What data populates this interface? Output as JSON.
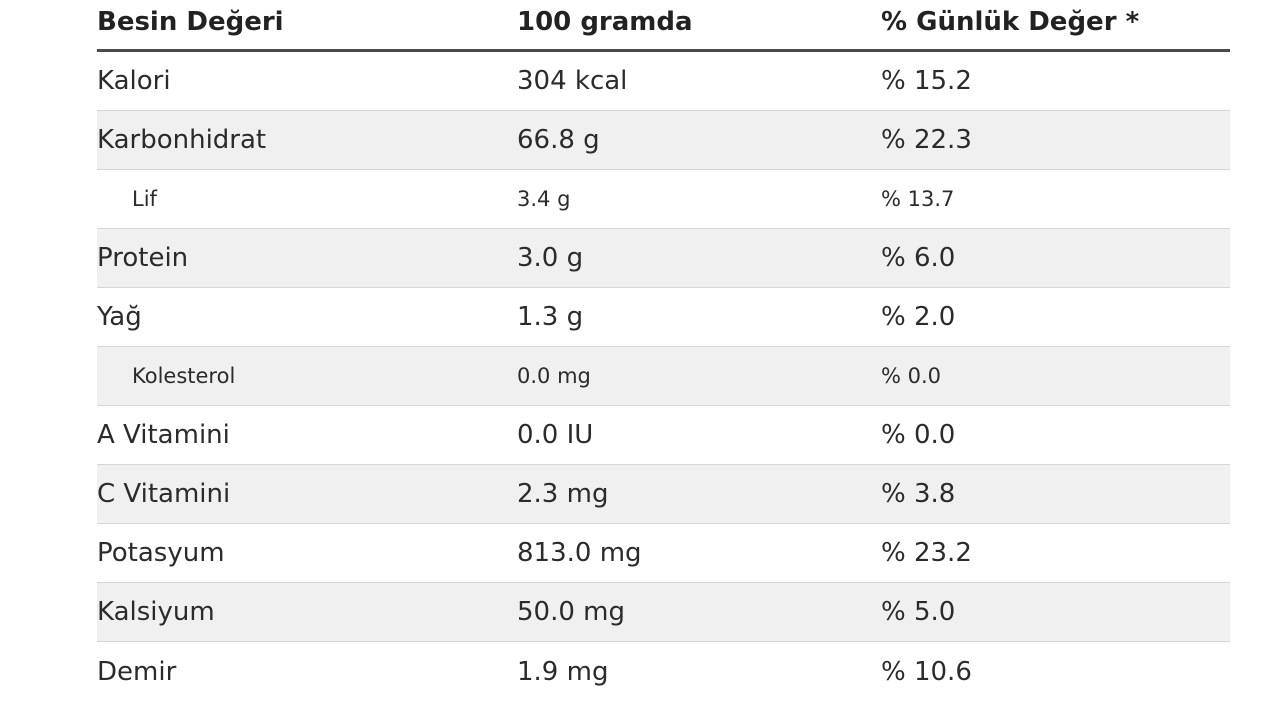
{
  "table": {
    "headers": {
      "name": "Besin Değeri",
      "amount": "100 gramda",
      "daily": "% Günlük Değer *"
    },
    "rows": [
      {
        "name": "Kalori",
        "amount": "304 kcal",
        "daily": "% 15.2",
        "sub": false
      },
      {
        "name": "Karbonhidrat",
        "amount": "66.8 g",
        "daily": "% 22.3",
        "sub": false
      },
      {
        "name": "Lif",
        "amount": "3.4 g",
        "daily": "% 13.7",
        "sub": true
      },
      {
        "name": "Protein",
        "amount": "3.0 g",
        "daily": "% 6.0",
        "sub": false
      },
      {
        "name": "Yağ",
        "amount": "1.3 g",
        "daily": "% 2.0",
        "sub": false
      },
      {
        "name": "Kolesterol",
        "amount": "0.0 mg",
        "daily": "% 0.0",
        "sub": true
      },
      {
        "name": "A Vitamini",
        "amount": "0.0 IU",
        "daily": "% 0.0",
        "sub": false
      },
      {
        "name": "C Vitamini",
        "amount": "2.3 mg",
        "daily": "% 3.8",
        "sub": false
      },
      {
        "name": "Potasyum",
        "amount": "813.0 mg",
        "daily": "% 23.2",
        "sub": false
      },
      {
        "name": "Kalsiyum",
        "amount": "50.0 mg",
        "daily": "% 5.0",
        "sub": false
      },
      {
        "name": "Demir",
        "amount": "1.9 mg",
        "daily": "% 10.6",
        "sub": false
      }
    ]
  }
}
